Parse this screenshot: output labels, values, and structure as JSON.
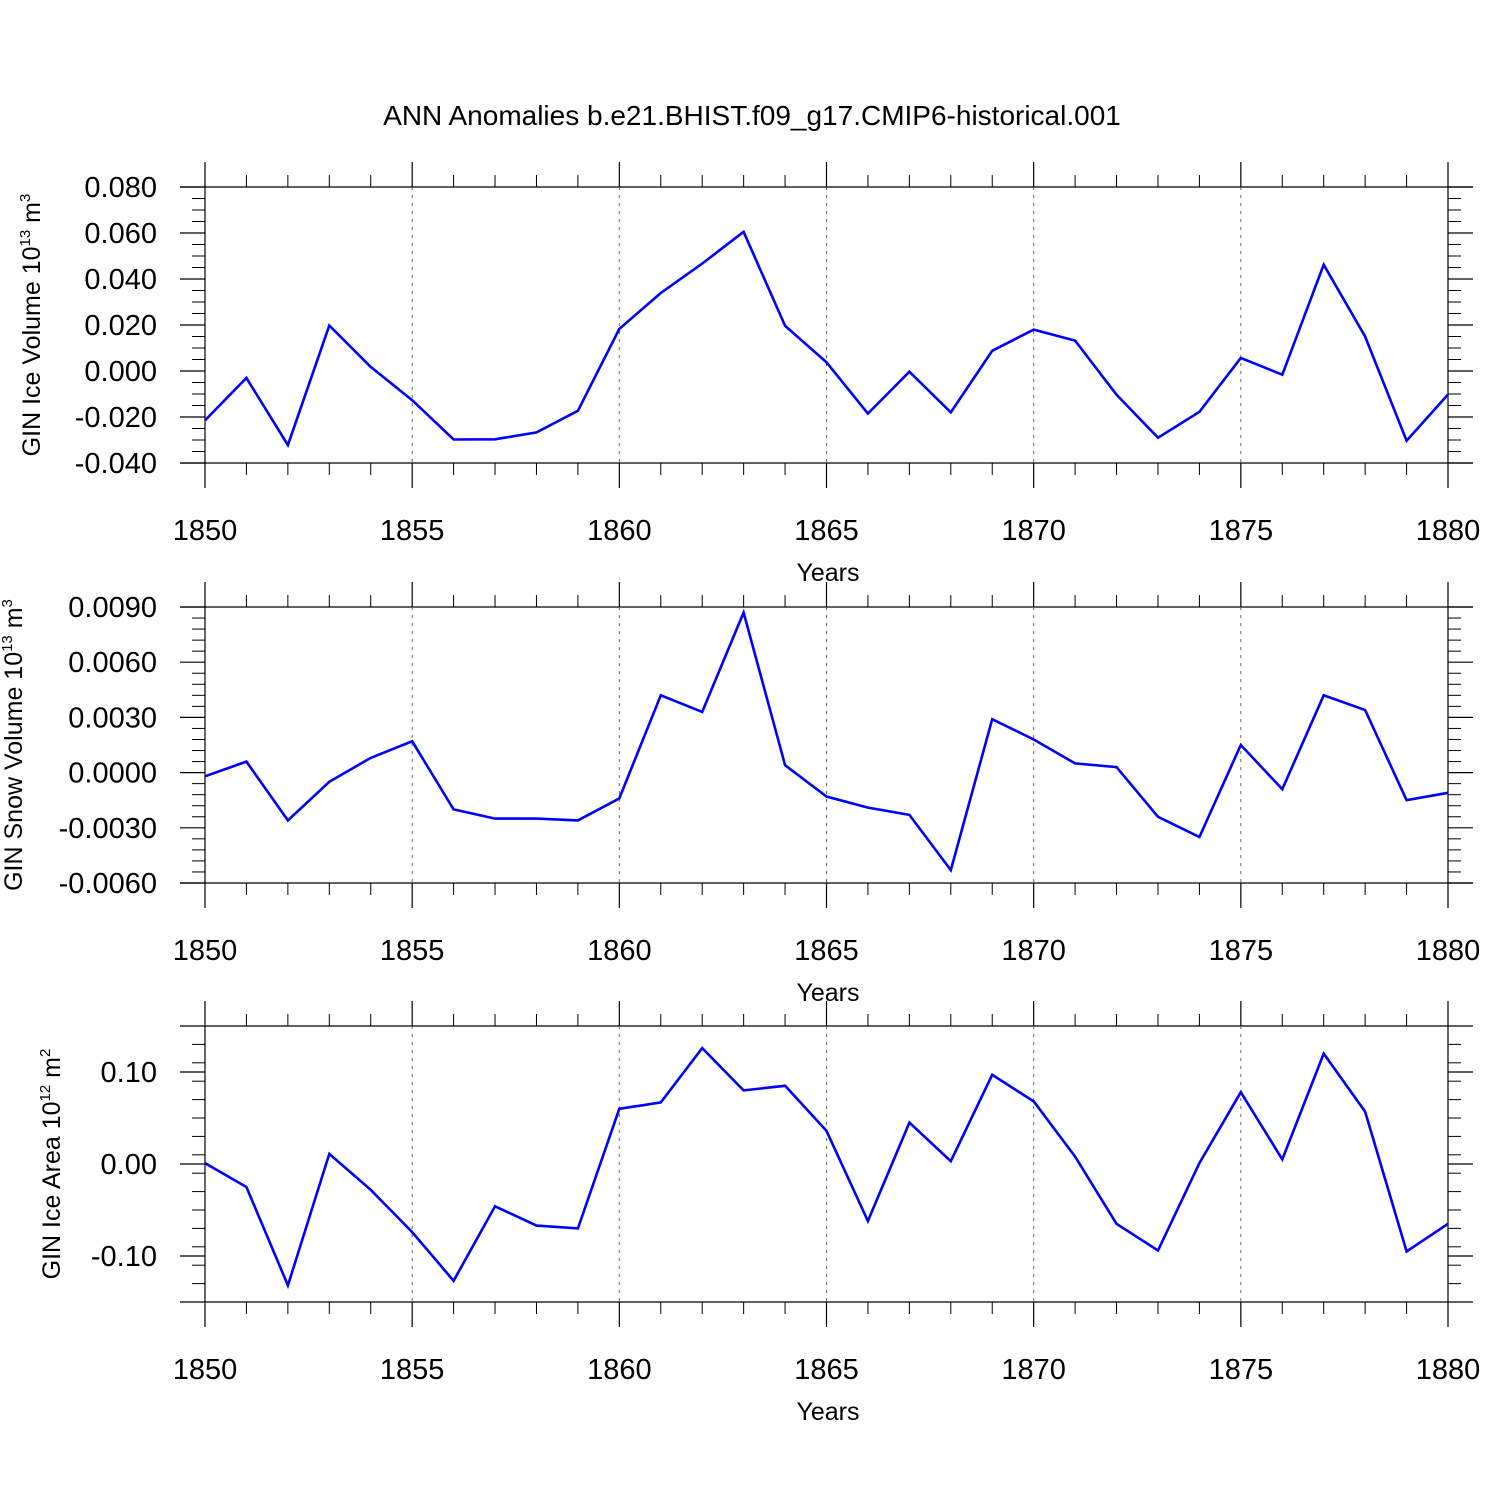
{
  "title": "ANN Anomalies b.e21.BHIST.f09_g17.CMIP6-historical.001",
  "line_color": "#0000ff",
  "chart_data": [
    {
      "type": "line",
      "title": "ANN Anomalies b.e21.BHIST.f09_g17.CMIP6-historical.001",
      "xlabel": "Years",
      "ylabel": {
        "text": "GIN Ice Volume 10",
        "sup": "13",
        "unit": " m",
        "unit_sup": "3"
      },
      "xlim": [
        1850,
        1880
      ],
      "ylim": [
        -0.04,
        0.08
      ],
      "x_ticks": [
        "1850",
        "1855",
        "1860",
        "1865",
        "1870",
        "1875",
        "1880"
      ],
      "y_ticks": [
        {
          "v": 0.08,
          "label": "0.080"
        },
        {
          "v": 0.06,
          "label": "0.060"
        },
        {
          "v": 0.04,
          "label": "0.040"
        },
        {
          "v": 0.02,
          "label": "0.020"
        },
        {
          "v": 0.0,
          "label": "0.000"
        },
        {
          "v": -0.02,
          "label": "-0.020"
        },
        {
          "v": -0.04,
          "label": "-0.040"
        }
      ],
      "y_minor_step": 0.005,
      "x": [
        1850,
        1851,
        1852,
        1853,
        1854,
        1855,
        1856,
        1857,
        1858,
        1859,
        1860,
        1861,
        1862,
        1863,
        1864,
        1865,
        1866,
        1867,
        1868,
        1869,
        1870,
        1871,
        1872,
        1873,
        1874,
        1875,
        1876,
        1877,
        1878,
        1879,
        1880
      ],
      "series": [
        {
          "name": "GIN Ice Volume",
          "values": [
            -0.0215,
            -0.003,
            -0.0322,
            0.0198,
            0.0018,
            -0.0127,
            -0.0298,
            -0.0297,
            -0.0267,
            -0.0173,
            0.0183,
            0.0339,
            0.0467,
            0.0605,
            0.0196,
            0.0038,
            -0.0185,
            -0.0003,
            -0.018,
            0.0088,
            0.018,
            0.0132,
            -0.0103,
            -0.029,
            -0.0178,
            0.0057,
            -0.0016,
            0.0462,
            0.015,
            -0.0303,
            -0.0102
          ]
        }
      ]
    },
    {
      "type": "line",
      "xlabel": "Years",
      "ylabel": {
        "text": "GIN Snow Volume 10",
        "sup": "13",
        "unit": " m",
        "unit_sup": "3"
      },
      "xlim": [
        1850,
        1880
      ],
      "ylim": [
        -0.006,
        0.009
      ],
      "x_ticks": [
        "1850",
        "1855",
        "1860",
        "1865",
        "1870",
        "1875",
        "1880"
      ],
      "y_ticks": [
        {
          "v": 0.009,
          "label": "0.0090"
        },
        {
          "v": 0.006,
          "label": "0.0060"
        },
        {
          "v": 0.003,
          "label": "0.0030"
        },
        {
          "v": 0.0,
          "label": "0.0000"
        },
        {
          "v": -0.003,
          "label": "-0.0030"
        },
        {
          "v": -0.006,
          "label": "-0.0060"
        }
      ],
      "y_minor_step": 0.0006,
      "x": [
        1850,
        1851,
        1852,
        1853,
        1854,
        1855,
        1856,
        1857,
        1858,
        1859,
        1860,
        1861,
        1862,
        1863,
        1864,
        1865,
        1866,
        1867,
        1868,
        1869,
        1870,
        1871,
        1872,
        1873,
        1874,
        1875,
        1876,
        1877,
        1878,
        1879,
        1880
      ],
      "series": [
        {
          "name": "GIN Snow Volume",
          "values": [
            -0.0002,
            0.0006,
            -0.0026,
            -0.0005,
            0.0008,
            0.0017,
            -0.002,
            -0.0025,
            -0.0025,
            -0.0026,
            -0.0014,
            0.0042,
            0.0033,
            0.0087,
            0.0004,
            -0.0013,
            -0.0019,
            -0.0023,
            -0.0053,
            0.0029,
            0.0018,
            0.0005,
            0.0003,
            -0.0024,
            -0.0035,
            0.0015,
            -0.0009,
            0.0042,
            0.0034,
            -0.0015,
            -0.0011
          ]
        }
      ]
    },
    {
      "type": "line",
      "xlabel": "Years",
      "ylabel": {
        "text": "GIN Ice Area 10",
        "sup": "12",
        "unit": " m",
        "unit_sup": "2"
      },
      "xlim": [
        1850,
        1880
      ],
      "ylim": [
        -0.15,
        0.15
      ],
      "x_ticks": [
        "1850",
        "1855",
        "1860",
        "1865",
        "1870",
        "1875",
        "1880"
      ],
      "y_ticks": [
        {
          "v": 0.1,
          "label": "0.10"
        },
        {
          "v": 0.0,
          "label": "0.00"
        },
        {
          "v": -0.1,
          "label": "-0.10"
        }
      ],
      "y_minor_step": 0.02,
      "x": [
        1850,
        1851,
        1852,
        1853,
        1854,
        1855,
        1856,
        1857,
        1858,
        1859,
        1860,
        1861,
        1862,
        1863,
        1864,
        1865,
        1866,
        1867,
        1868,
        1869,
        1870,
        1871,
        1872,
        1873,
        1874,
        1875,
        1876,
        1877,
        1878,
        1879,
        1880
      ],
      "series": [
        {
          "name": "GIN Ice Area",
          "values": [
            0.001,
            -0.025,
            -0.132,
            0.011,
            -0.028,
            -0.074,
            -0.127,
            -0.046,
            -0.067,
            -0.07,
            0.06,
            0.067,
            0.126,
            0.08,
            0.085,
            0.036,
            -0.062,
            0.045,
            0.003,
            0.097,
            0.068,
            0.008,
            -0.065,
            -0.094,
            0.001,
            0.078,
            0.005,
            0.12,
            0.057,
            -0.095,
            -0.065
          ]
        }
      ]
    }
  ]
}
